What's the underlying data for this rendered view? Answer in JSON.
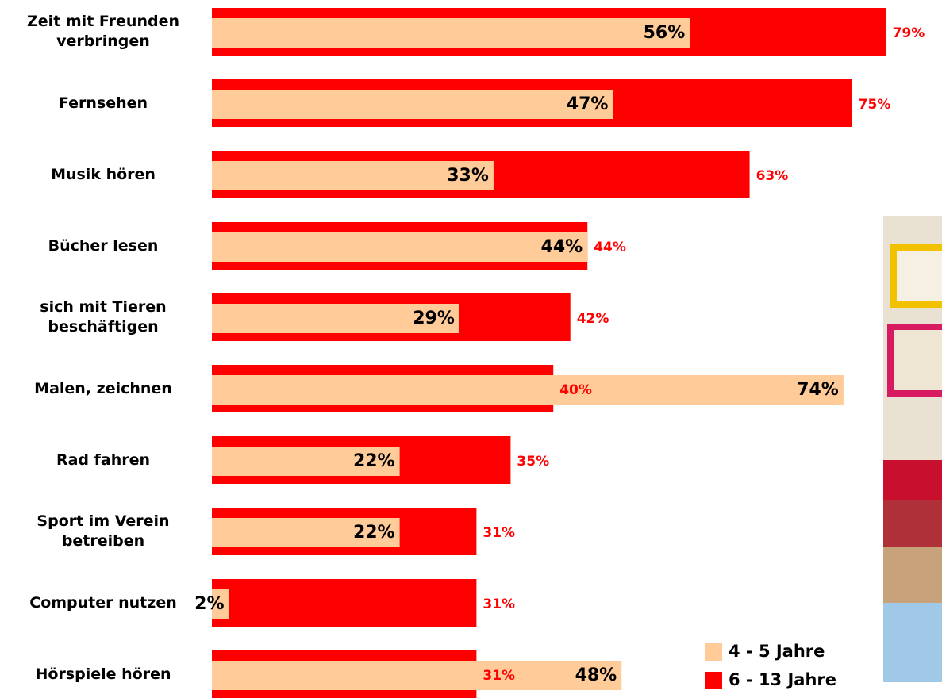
{
  "chart_data": {
    "type": "hbar-overlap",
    "categories": [
      "Zeit mit Freunden\nverbringen",
      "Fernsehen",
      "Musik hören",
      "Bücher lesen",
      "sich mit Tieren\nbeschäftigen",
      "Malen, zeichnen",
      "Rad fahren",
      "Sport im Verein\nbetreiben",
      "Computer nutzen",
      "Hörspiele hören"
    ],
    "series": [
      {
        "name": "4 - 5 Jahre",
        "color": "#ffcc99",
        "values": [
          56,
          47,
          33,
          44,
          29,
          74,
          22,
          22,
          2,
          48
        ],
        "value_labels": [
          "56%",
          "47%",
          "33%",
          "44%",
          "29%",
          "74%",
          "22%",
          "22%",
          "2%",
          "48%"
        ]
      },
      {
        "name": "6 - 13 Jahre",
        "color": "#ff0000",
        "values": [
          79,
          75,
          63,
          44,
          42,
          40,
          35,
          31,
          31,
          31
        ],
        "value_labels": [
          "79%",
          "75%",
          "63%",
          "44%",
          "42%",
          "40%",
          "35%",
          "31%",
          "31%",
          "31%"
        ]
      }
    ]
  }
}
